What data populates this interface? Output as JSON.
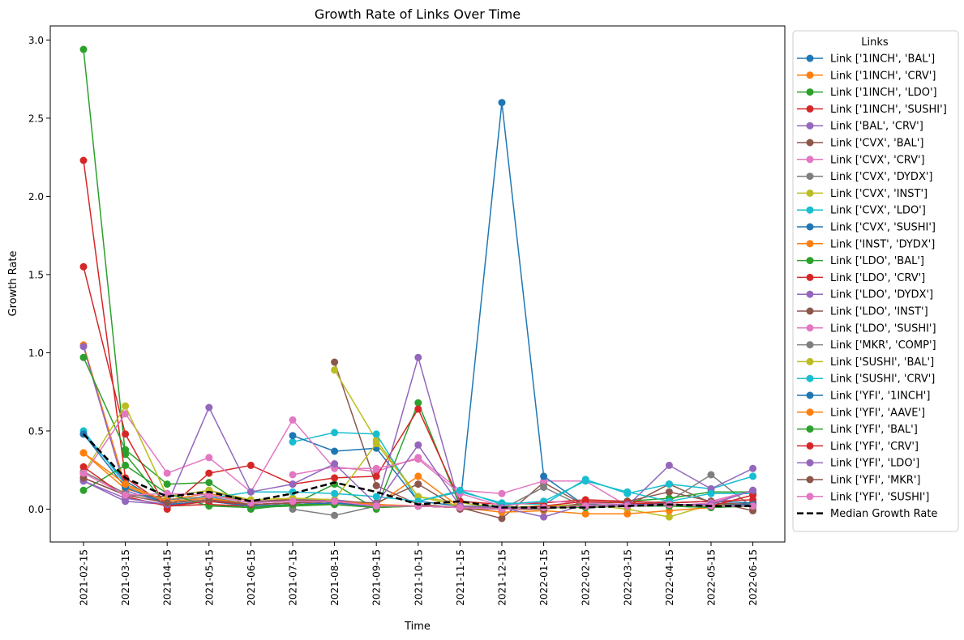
{
  "chart_data": {
    "type": "line",
    "title": "Growth Rate of Links Over Time",
    "xlabel": "Time",
    "ylabel": "Growth Rate",
    "ylim": [
      -0.21,
      3.09
    ],
    "yticks": [
      0.0,
      0.5,
      1.0,
      1.5,
      2.0,
      2.5,
      3.0
    ],
    "ytick_labels": [
      "0.0",
      "0.5",
      "1.0",
      "1.5",
      "2.0",
      "2.5",
      "3.0"
    ],
    "x": [
      "2021-02-15",
      "2021-03-15",
      "2021-04-15",
      "2021-05-15",
      "2021-06-15",
      "2021-07-15",
      "2021-08-15",
      "2021-09-15",
      "2021-10-15",
      "2021-11-15",
      "2021-12-15",
      "2022-01-15",
      "2022-02-15",
      "2022-03-15",
      "2022-04-15",
      "2022-05-15",
      "2022-06-15"
    ],
    "grid": false,
    "legend": {
      "title": "Links",
      "placement": "outside-right"
    },
    "series": [
      {
        "name": "Link ['1INCH', 'BAL']",
        "color": "#1f77b4",
        "values": [
          0.48,
          0.18,
          0.02,
          0.05,
          0.02,
          0.03,
          0.04,
          0.02,
          0.02,
          0.01,
          0.01,
          0.02,
          0.02,
          0.03,
          0.03,
          0.02,
          0.04
        ]
      },
      {
        "name": "Link ['1INCH', 'CRV']",
        "color": "#ff7f0e",
        "values": [
          1.05,
          0.15,
          0.04,
          0.06,
          0.03,
          0.04,
          0.05,
          0.03,
          0.02,
          0.01,
          0.0,
          0.01,
          0.02,
          0.02,
          0.03,
          0.02,
          0.03
        ]
      },
      {
        "name": "Link ['1INCH', 'LDO']",
        "color": "#2ca02c",
        "values": [
          2.94,
          0.35,
          0.02,
          0.03,
          0.01,
          0.02,
          0.03,
          0.01,
          0.02,
          0.01,
          0.0,
          0.02,
          0.03,
          0.02,
          0.02,
          0.01,
          0.02
        ]
      },
      {
        "name": "Link ['1INCH', 'SUSHI']",
        "color": "#d62728",
        "values": [
          2.23,
          0.2,
          0.02,
          0.03,
          0.02,
          0.03,
          0.04,
          0.02,
          0.02,
          0.01,
          0.01,
          0.01,
          0.02,
          0.02,
          0.03,
          0.02,
          0.02
        ]
      },
      {
        "name": "Link ['BAL', 'CRV']",
        "color": "#9467bd",
        "values": [
          1.04,
          0.12,
          0.03,
          0.05,
          0.02,
          0.03,
          0.03,
          0.02,
          0.02,
          0.01,
          0.01,
          0.02,
          0.02,
          0.03,
          0.02,
          0.02,
          0.03
        ]
      },
      {
        "name": "Link ['CVX', 'BAL']",
        "color": "#8c564b",
        "values": [
          null,
          null,
          null,
          null,
          null,
          null,
          0.94,
          0.15,
          0.03,
          0.01,
          -0.06,
          0.17,
          0.02,
          0.02,
          0.16,
          0.04,
          0.03
        ]
      },
      {
        "name": "Link ['CVX', 'CRV']",
        "color": "#e377c2",
        "values": [
          null,
          null,
          null,
          null,
          null,
          0.22,
          0.27,
          0.24,
          0.33,
          0.12,
          0.1,
          0.18,
          0.18,
          0.02,
          0.04,
          0.05,
          0.12
        ]
      },
      {
        "name": "Link ['CVX', 'DYDX']",
        "color": "#7f7f7f",
        "values": [
          null,
          null,
          null,
          null,
          null,
          0.0,
          -0.04,
          0.02,
          0.02,
          0.01,
          0.0,
          0.14,
          0.01,
          0.03,
          0.05,
          0.22,
          0.01
        ]
      },
      {
        "name": "Link ['CVX', 'INST']",
        "color": "#bcbd22",
        "values": [
          null,
          null,
          null,
          null,
          null,
          null,
          0.89,
          0.44,
          0.08,
          0.04,
          0.01,
          0.02,
          0.03,
          0.0,
          -0.05,
          0.03,
          0.02
        ]
      },
      {
        "name": "Link ['CVX', 'LDO']",
        "color": "#17becf",
        "values": [
          null,
          null,
          null,
          null,
          null,
          0.43,
          0.49,
          0.48,
          0.05,
          0.11,
          0.04,
          0.03,
          0.19,
          0.1,
          0.16,
          0.13,
          0.21
        ]
      },
      {
        "name": "Link ['CVX', 'SUSHI']",
        "color": "#1f77b4",
        "values": [
          null,
          null,
          null,
          null,
          null,
          0.47,
          0.37,
          0.39,
          0.05,
          0.02,
          2.6,
          0.21,
          0.02,
          0.03,
          0.04,
          0.05,
          0.04
        ]
      },
      {
        "name": "Link ['INST', 'DYDX']",
        "color": "#ff7f0e",
        "values": [
          0.36,
          0.13,
          0.06,
          0.1,
          0.04,
          0.07,
          0.06,
          0.03,
          0.21,
          0.01,
          -0.02,
          -0.01,
          -0.03,
          -0.03,
          -0.01,
          0.01,
          0.03
        ]
      },
      {
        "name": "Link ['LDO', 'BAL']",
        "color": "#2ca02c",
        "values": [
          0.97,
          0.38,
          0.16,
          0.17,
          0.0,
          0.03,
          0.16,
          0.0,
          0.68,
          0.02,
          0.02,
          0.0,
          0.03,
          0.05,
          0.07,
          0.11,
          0.11
        ]
      },
      {
        "name": "Link ['LDO', 'CRV']",
        "color": "#d62728",
        "values": [
          1.55,
          0.48,
          0.0,
          0.23,
          0.28,
          0.16,
          0.2,
          0.21,
          0.64,
          0.05,
          0.03,
          0.04,
          0.06,
          0.05,
          0.04,
          0.05,
          0.06
        ]
      },
      {
        "name": "Link ['LDO', 'DYDX']",
        "color": "#9467bd",
        "values": [
          0.18,
          0.05,
          0.03,
          0.09,
          0.04,
          0.06,
          0.06,
          0.03,
          0.97,
          0.02,
          0.01,
          -0.05,
          0.03,
          0.02,
          0.28,
          0.13,
          0.26
        ]
      },
      {
        "name": "Link ['LDO', 'INST']",
        "color": "#8c564b",
        "values": [
          0.2,
          0.09,
          0.08,
          0.12,
          0.05,
          0.06,
          0.05,
          0.04,
          0.16,
          0.0,
          0.0,
          0.0,
          0.04,
          0.05,
          0.11,
          0.05,
          -0.01
        ]
      },
      {
        "name": "Link ['LDO', 'SUSHI']",
        "color": "#e377c2",
        "values": [
          0.22,
          0.61,
          0.23,
          0.33,
          0.11,
          0.57,
          0.26,
          0.26,
          0.32,
          0.1,
          0.02,
          0.05,
          0.04,
          0.03,
          0.02,
          0.04,
          0.12
        ]
      },
      {
        "name": "Link ['MKR', 'COMP']",
        "color": "#7f7f7f",
        "values": [
          0.24,
          0.1,
          0.06,
          0.08,
          0.03,
          0.04,
          0.05,
          0.02,
          0.02,
          0.01,
          0.0,
          0.01,
          0.02,
          0.02,
          0.03,
          0.01,
          0.02
        ]
      },
      {
        "name": "Link ['SUSHI', 'BAL']",
        "color": "#bcbd22",
        "values": [
          0.23,
          0.66,
          0.08,
          0.12,
          0.06,
          0.07,
          0.06,
          0.42,
          0.08,
          0.02,
          0.01,
          0.02,
          0.02,
          0.03,
          0.03,
          0.02,
          0.02
        ]
      },
      {
        "name": "Link ['SUSHI', 'CRV']",
        "color": "#17becf",
        "values": [
          0.5,
          0.16,
          0.05,
          0.07,
          0.11,
          0.11,
          0.1,
          0.08,
          0.05,
          0.12,
          0.03,
          0.05,
          0.18,
          0.11,
          0.05,
          0.1,
          0.1
        ]
      },
      {
        "name": "Link ['YFI', '1INCH']",
        "color": "#1f77b4",
        "values": [
          0.48,
          0.14,
          0.03,
          0.05,
          0.02,
          0.03,
          0.04,
          0.02,
          0.02,
          0.01,
          0.0,
          0.01,
          0.02,
          0.02,
          0.02,
          0.02,
          0.03
        ]
      },
      {
        "name": "Link ['YFI', 'AAVE']",
        "color": "#ff7f0e",
        "values": [
          0.36,
          0.16,
          0.05,
          0.07,
          0.03,
          0.04,
          0.05,
          0.03,
          0.02,
          0.01,
          0.0,
          0.01,
          0.02,
          0.02,
          0.03,
          0.02,
          0.02
        ]
      },
      {
        "name": "Link ['YFI', 'BAL']",
        "color": "#2ca02c",
        "values": [
          0.12,
          0.28,
          0.1,
          0.02,
          0.01,
          0.03,
          0.03,
          0.01,
          0.02,
          0.01,
          0.0,
          0.01,
          0.01,
          0.02,
          0.02,
          0.01,
          0.02
        ]
      },
      {
        "name": "Link ['YFI', 'CRV']",
        "color": "#d62728",
        "values": [
          0.27,
          0.08,
          0.02,
          0.05,
          0.03,
          0.04,
          0.05,
          0.02,
          0.02,
          0.01,
          0.0,
          0.02,
          0.05,
          0.04,
          0.03,
          0.02,
          0.09
        ]
      },
      {
        "name": "Link ['YFI', 'LDO']",
        "color": "#9467bd",
        "values": [
          0.18,
          0.07,
          0.03,
          0.65,
          0.11,
          0.16,
          0.29,
          0.03,
          0.41,
          0.02,
          0.01,
          0.01,
          0.02,
          0.03,
          0.03,
          0.03,
          0.12
        ]
      },
      {
        "name": "Link ['YFI', 'MKR']",
        "color": "#8c564b",
        "values": [
          0.2,
          0.09,
          0.04,
          0.06,
          0.03,
          0.04,
          0.05,
          0.02,
          0.02,
          0.01,
          0.0,
          0.01,
          0.02,
          0.02,
          0.03,
          0.02,
          0.02
        ]
      },
      {
        "name": "Link ['YFI', 'SUSHI']",
        "color": "#e377c2",
        "values": [
          0.23,
          0.09,
          0.1,
          0.09,
          0.04,
          0.05,
          0.05,
          0.02,
          0.02,
          0.01,
          0.0,
          0.01,
          0.02,
          0.02,
          0.03,
          0.02,
          0.02
        ]
      }
    ],
    "median": {
      "name": "Median Growth Rate",
      "color": "#000000",
      "values": [
        0.48,
        0.2,
        0.08,
        0.11,
        0.05,
        0.1,
        0.17,
        0.11,
        0.03,
        0.05,
        0.01,
        0.01,
        0.01,
        0.02,
        0.03,
        0.02,
        0.02
      ]
    }
  }
}
